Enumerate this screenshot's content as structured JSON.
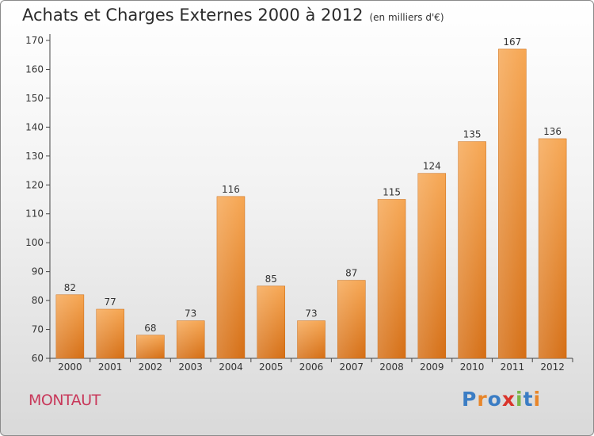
{
  "chart_data": {
    "type": "bar",
    "title": "Achats et Charges Externes 2000 à 2012",
    "subtitle": "(en milliers d'€)",
    "categories": [
      "2000",
      "2001",
      "2002",
      "2003",
      "2004",
      "2005",
      "2006",
      "2007",
      "2008",
      "2009",
      "2010",
      "2011",
      "2012"
    ],
    "values": [
      82,
      77,
      68,
      73,
      116,
      85,
      73,
      87,
      115,
      124,
      135,
      167,
      136
    ],
    "ylim": [
      60,
      170
    ],
    "yticks": [
      60,
      70,
      80,
      90,
      100,
      110,
      120,
      130,
      140,
      150,
      160,
      170
    ],
    "grid": false,
    "bar_color": "#f0922f",
    "bar_color_dark": "#d9761b"
  },
  "footer": {
    "commune": "MONTAUT",
    "logo_text": "Proxiti",
    "logo_colors": [
      "#3b7dc4",
      "#e8862a",
      "#3b7dc4",
      "#d9342b",
      "#7ab648",
      "#3b7dc4",
      "#e8862a"
    ]
  }
}
